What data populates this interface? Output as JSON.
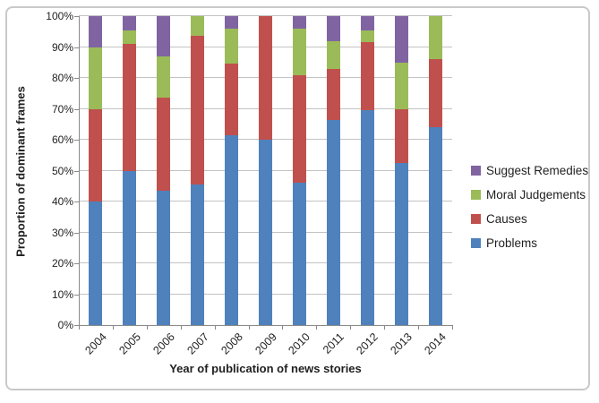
{
  "chart_data": {
    "type": "bar",
    "stacked": true,
    "title": "",
    "xlabel": "Year of publication of news stories",
    "ylabel": "Proportion of dominant frames",
    "categories": [
      "2004",
      "2005",
      "2006",
      "2007",
      "2008",
      "2009",
      "2010",
      "2011",
      "2012",
      "2013",
      "2014"
    ],
    "series": [
      {
        "name": "Problems",
        "color": "#4F81BD",
        "values": [
          40,
          50,
          43.5,
          45.5,
          61.5,
          60,
          46,
          66.5,
          69.5,
          52.5,
          64
        ]
      },
      {
        "name": "Causes",
        "color": "#C0504D",
        "values": [
          30,
          41,
          30,
          48,
          23,
          40,
          35,
          16.5,
          22,
          17.5,
          22
        ]
      },
      {
        "name": "Moral Judgements",
        "color": "#9BBB59",
        "values": [
          20,
          4.5,
          13.5,
          6.5,
          11.5,
          0,
          15,
          9,
          4,
          15,
          14
        ]
      },
      {
        "name": "Suggest Remedies",
        "color": "#8064A2",
        "values": [
          10,
          4.5,
          13,
          0,
          4,
          0,
          4,
          8,
          4.5,
          15,
          0
        ]
      }
    ],
    "ylim": [
      0,
      100
    ],
    "ytick_step": 10,
    "ytick_labels": [
      "0%",
      "10%",
      "20%",
      "30%",
      "40%",
      "50%",
      "60%",
      "70%",
      "80%",
      "90%",
      "100%"
    ],
    "grid": true,
    "legend_position": "right",
    "legend_order_top_to_bottom": [
      "Suggest Remedies",
      "Moral Judgements",
      "Causes",
      "Problems"
    ]
  },
  "colors": {
    "problems": "#4F81BD",
    "causes": "#C0504D",
    "moral_judgements": "#9BBB59",
    "suggest_remedies": "#8064A2",
    "gridline": "#C3C3C3",
    "axis": "#8A8A8A",
    "text": "#1F1F1F",
    "figure_border": "#C9C9C9"
  }
}
